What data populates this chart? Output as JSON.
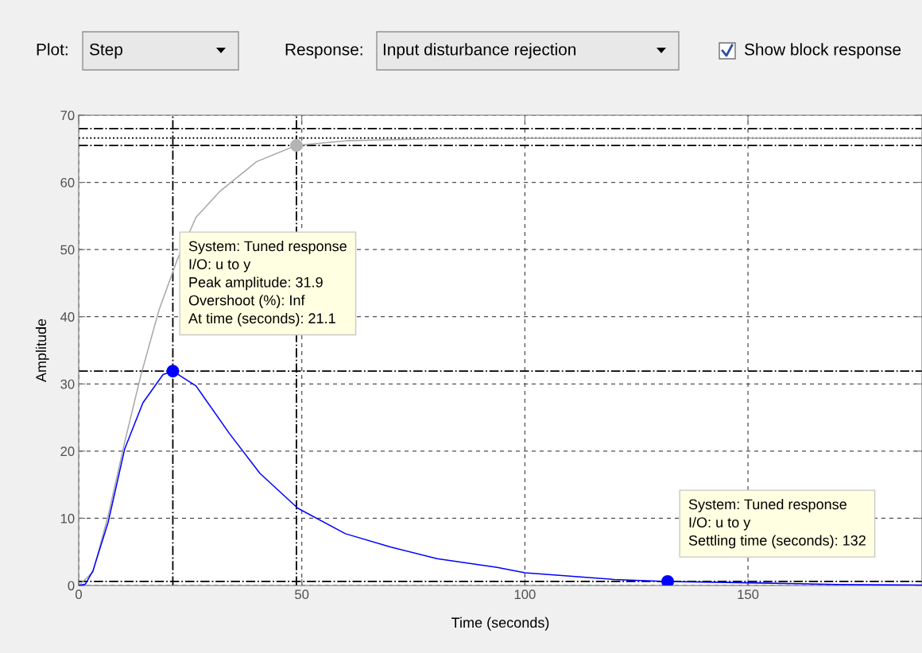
{
  "chart_data": {
    "type": "line",
    "xlabel": "Time (seconds)",
    "ylabel": "Amplitude",
    "xlim": [
      0,
      189
    ],
    "ylim": [
      0,
      70
    ],
    "xticks": [
      0,
      50,
      100,
      150
    ],
    "yticks": [
      0,
      10,
      20,
      30,
      40,
      50,
      60,
      70
    ],
    "grid": true,
    "legend": false,
    "series": [
      {
        "color": "#a8a8a8",
        "x": [
          0,
          3.2,
          6.6,
          10.3,
          13.9,
          18,
          22.1,
          26.3,
          31.7,
          39.9,
          48.8,
          60,
          80,
          120,
          189
        ],
        "values": [
          0,
          2,
          10.4,
          21.3,
          31.2,
          41,
          48.5,
          54.8,
          58.7,
          63.1,
          65.5,
          66.2,
          66.5,
          66.6,
          66.6
        ]
      },
      {
        "color": "#0000ff",
        "x": [
          0,
          1.5,
          3.2,
          6.6,
          10.3,
          14.4,
          18.9,
          21.1,
          26.3,
          33.8,
          40.6,
          49.1,
          59.8,
          70,
          80.3,
          93.8,
          100,
          120,
          132,
          150,
          170,
          189
        ],
        "values": [
          0,
          0.2,
          2.2,
          9.4,
          20.3,
          27.2,
          31.4,
          31.9,
          29.7,
          22.6,
          16.7,
          11.5,
          7.7,
          5.7,
          4.0,
          2.7,
          1.9,
          0.9,
          0.6,
          0.4,
          0.15,
          0.05
        ]
      },
      {
        "type": "scatter",
        "color": "#0000ff",
        "marker": "circle",
        "x": [
          21.1,
          132
        ],
        "values": [
          31.9,
          0.6
        ]
      },
      {
        "type": "scatter",
        "color": "#b4b4b4",
        "marker": "circle",
        "x": [
          48.8
        ],
        "values": [
          65.5
        ]
      }
    ],
    "ref_lines": [
      {
        "axis": "y",
        "value": 68,
        "color": "#000000",
        "line_style": "dashdot"
      },
      {
        "axis": "y",
        "value": 66.6,
        "color": "#000000",
        "line_style": "dotted"
      },
      {
        "axis": "y",
        "value": 65.5,
        "color": "#000000",
        "line_style": "dashdot"
      },
      {
        "axis": "y",
        "value": 31.9,
        "color": "#000000",
        "line_style": "dashdot"
      },
      {
        "axis": "y",
        "value": 0.6,
        "color": "#000000",
        "line_style": "dashdot"
      },
      {
        "axis": "x",
        "value": 21.1,
        "color": "#000000",
        "line_style": "dashdot"
      },
      {
        "axis": "x",
        "value": 48.8,
        "color": "#000000",
        "line_style": "dashdot"
      }
    ],
    "annotations": [
      "System: Tuned response\nI/O: u to y\nPeak amplitude: 31.9\nOvershoot (%): Inf\nAt time (seconds): 21.1",
      "System: Tuned response\nI/O: u to y\nSettling time (seconds): 132",
      "Plot:",
      "Step",
      "Response:",
      "Input disturbance rejection",
      "Show block response"
    ]
  }
}
